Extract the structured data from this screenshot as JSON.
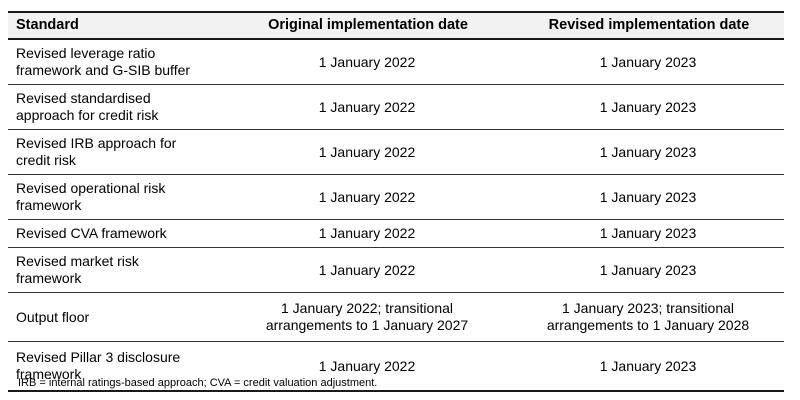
{
  "table": {
    "columns": [
      {
        "label": "Standard"
      },
      {
        "label": "Original implementation date"
      },
      {
        "label": "Revised implementation date"
      }
    ],
    "rows": [
      {
        "standard": "Revised leverage ratio\nframework and G-SIB buffer",
        "original": "1 January 2022",
        "revised": "1 January 2023"
      },
      {
        "standard": "Revised standardised\napproach for credit risk",
        "original": "1 January 2022",
        "revised": "1 January 2023"
      },
      {
        "standard": "Revised IRB approach for\ncredit risk",
        "original": "1 January 2022",
        "revised": "1 January 2023"
      },
      {
        "standard": "Revised operational risk\nframework",
        "original": "1 January 2022",
        "revised": "1 January 2023"
      },
      {
        "standard": "Revised CVA framework",
        "original": "1 January 2022",
        "revised": "1 January 2023"
      },
      {
        "standard": "Revised market risk\nframework",
        "original": "1 January 2022",
        "revised": "1 January 2023"
      },
      {
        "standard": "Output floor",
        "original": "1 January 2022; transitional\narrangements to 1 January 2027",
        "revised": "1 January 2023; transitional\narrangements to 1 January 2028"
      },
      {
        "standard": "Revised Pillar 3 disclosure\nframework",
        "original": "1 January 2022",
        "revised": "1 January 2023"
      }
    ],
    "footnote": "IRB = internal ratings-based approach; CVA = credit valuation adjustment."
  },
  "colors": {
    "header_background": "#f2f2f2",
    "thick_border": "#1a1a1a",
    "row_separator": "#333333",
    "text": "#000000"
  }
}
